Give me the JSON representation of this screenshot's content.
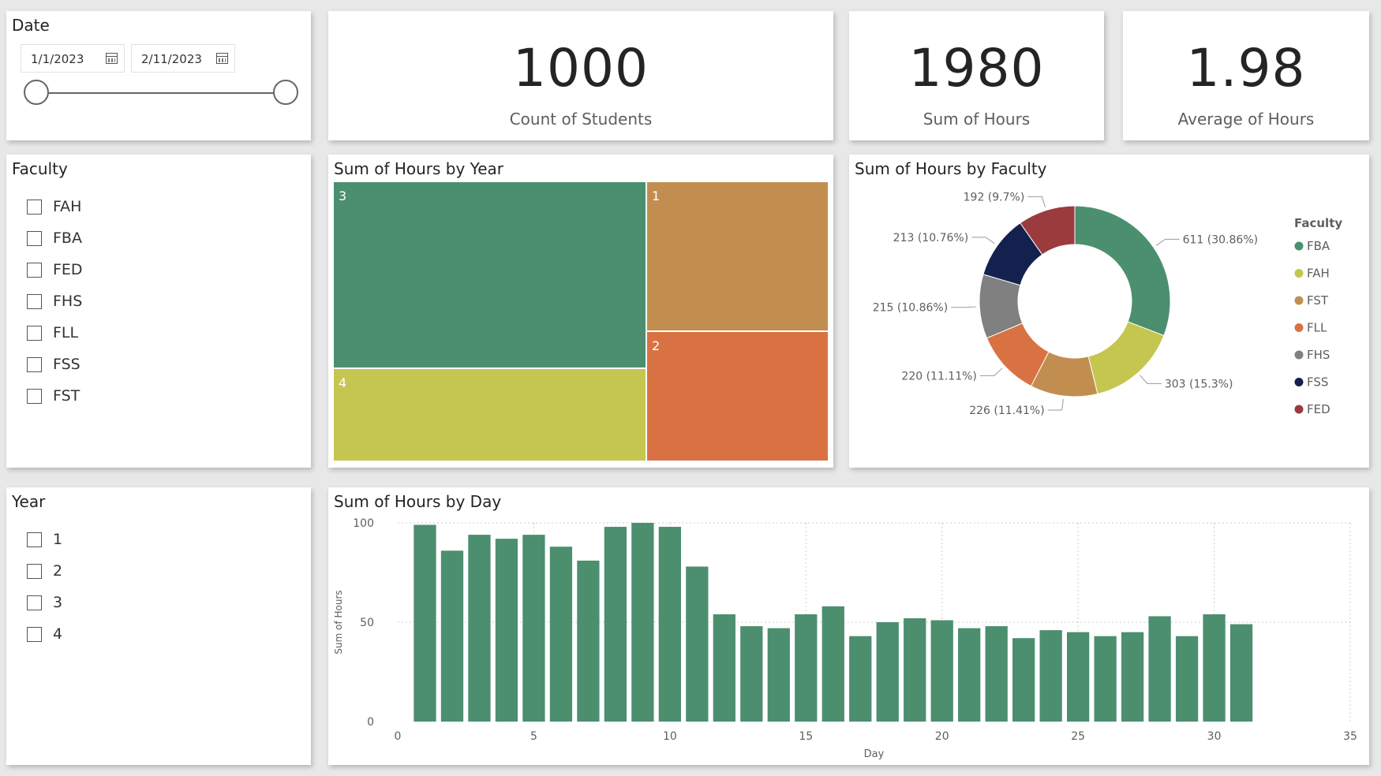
{
  "date_slicer": {
    "title": "Date",
    "start": "1/1/2023",
    "end": "2/11/2023"
  },
  "kpis": [
    {
      "value": "1000",
      "label": "Count of Students"
    },
    {
      "value": "1980",
      "label": "Sum of Hours"
    },
    {
      "value": "1.98",
      "label": "Average of Hours"
    }
  ],
  "faculty_slicer": {
    "title": "Faculty",
    "items": [
      "FAH",
      "FBA",
      "FED",
      "FHS",
      "FLL",
      "FSS",
      "FST"
    ]
  },
  "year_slicer": {
    "title": "Year",
    "items": [
      "1",
      "2",
      "3",
      "4"
    ]
  },
  "colors": {
    "green": "#4b8f6f",
    "yellow": "#c5c650",
    "tan": "#c28e50",
    "orange": "#d97243",
    "gray": "#808080",
    "navy": "#14214f",
    "red": "#9c3b3e"
  },
  "chart_data": [
    {
      "type": "treemap",
      "title": "Sum of Hours by Year",
      "categories": [
        "3",
        "4",
        "1",
        "2"
      ],
      "colors": [
        "#4b8f6f",
        "#c5c650",
        "#c28e50",
        "#d97243"
      ]
    },
    {
      "type": "pie",
      "title": "Sum of Hours by Faculty",
      "legend_title": "Faculty",
      "legend_position": "right",
      "categories": [
        "FBA",
        "FAH",
        "FST",
        "FLL",
        "FHS",
        "FSS",
        "FED"
      ],
      "values": [
        611,
        303,
        226,
        220,
        215,
        213,
        192
      ],
      "labels": [
        "611 (30.86%)",
        "303 (15.3%)",
        "226 (11.41%)",
        "220 (11.11%)",
        "215 (10.86%)",
        "213 (10.76%)",
        "192 (9.7%)"
      ],
      "colors": [
        "#4b8f6f",
        "#c5c650",
        "#c28e50",
        "#d97243",
        "#808080",
        "#14214f",
        "#9c3b3e"
      ]
    },
    {
      "type": "bar",
      "title": "Sum of Hours by Day",
      "xlabel": "Day",
      "ylabel": "Sum of Hours",
      "x": [
        1,
        2,
        3,
        4,
        5,
        6,
        7,
        8,
        9,
        10,
        11,
        12,
        13,
        14,
        15,
        16,
        17,
        18,
        19,
        20,
        21,
        22,
        23,
        24,
        25,
        26,
        27,
        28,
        29,
        30,
        31
      ],
      "values": [
        99,
        86,
        94,
        92,
        94,
        88,
        81,
        98,
        100,
        98,
        78,
        54,
        48,
        47,
        54,
        58,
        43,
        50,
        52,
        51,
        47,
        48,
        42,
        46,
        45,
        43,
        45,
        53,
        43,
        54,
        49
      ],
      "xlim": [
        0,
        35
      ],
      "ylim": [
        0,
        100
      ],
      "xticks": [
        "0",
        "5",
        "10",
        "15",
        "20",
        "25",
        "30",
        "35"
      ],
      "yticks": [
        "0",
        "50",
        "100"
      ],
      "grid": true,
      "color": "#4b8f6f"
    }
  ]
}
